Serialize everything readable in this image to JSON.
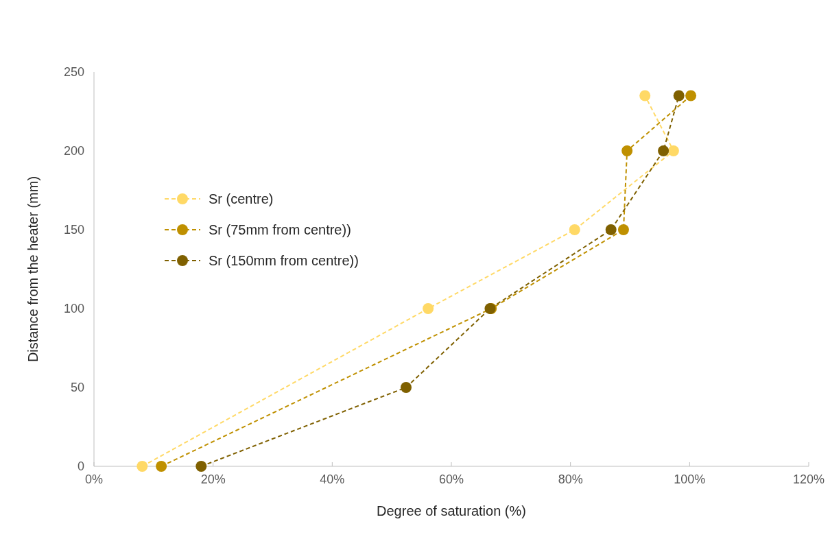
{
  "chart_data": {
    "type": "line",
    "xlabel": "Degree of saturation (%)",
    "ylabel": "Distance from the heater (mm)",
    "xlim": [
      0,
      120
    ],
    "xticks": [
      {
        "value": 0,
        "label": "0%"
      },
      {
        "value": 20,
        "label": "20%"
      },
      {
        "value": 40,
        "label": "40%"
      },
      {
        "value": 60,
        "label": "60%"
      },
      {
        "value": 80,
        "label": "80%"
      },
      {
        "value": 100,
        "label": "100%"
      },
      {
        "value": 120,
        "label": "120%"
      }
    ],
    "ylim": [
      0,
      250
    ],
    "yticks": [
      0,
      50,
      100,
      150,
      200,
      250
    ],
    "grid": false,
    "legend": "left",
    "marker": "circle",
    "line_style": "dashed",
    "series": [
      {
        "name": "Sr (centre)",
        "color": "#ffd966",
        "x": [
          8.1,
          56.1,
          80.7,
          97.3,
          92.5
        ],
        "values": [
          0,
          100,
          150,
          200,
          235
        ]
      },
      {
        "name": "Sr (75mm from centre))",
        "color": "#bf9000",
        "x": [
          11.3,
          66.7,
          88.9,
          89.5,
          100.2
        ],
        "values": [
          0,
          100,
          150,
          200,
          235
        ]
      },
      {
        "name": "Sr (150mm from centre))",
        "color": "#7f6000",
        "x": [
          18.0,
          52.4,
          66.5,
          86.8,
          95.6,
          98.2
        ],
        "values": [
          0,
          50,
          100,
          150,
          200,
          235
        ]
      }
    ]
  }
}
